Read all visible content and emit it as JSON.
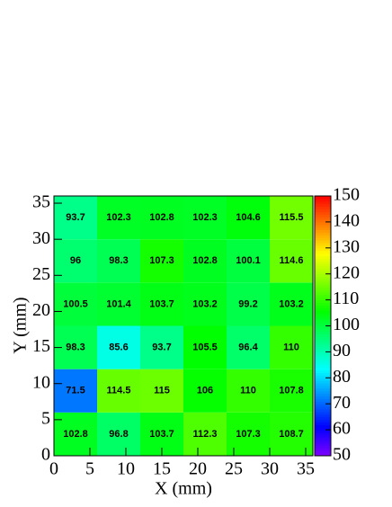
{
  "chart_data": {
    "type": "heatmap",
    "x_label": "X (mm)",
    "y_label": "Y (mm)",
    "xbins": [
      0,
      6,
      12,
      18,
      24,
      30,
      36
    ],
    "ybins": [
      0,
      6,
      12,
      18,
      24,
      30,
      36
    ],
    "values": [
      [
        102.8,
        96.8,
        103.7,
        112.3,
        107.3,
        108.7
      ],
      [
        71.5,
        114.5,
        115,
        106,
        110,
        107.8
      ],
      [
        98.3,
        85.6,
        93.7,
        105.5,
        96.4,
        110
      ],
      [
        100.5,
        101.4,
        103.7,
        103.2,
        99.2,
        103.2
      ],
      [
        96,
        98.3,
        107.3,
        102.8,
        100.1,
        114.6
      ],
      [
        93.7,
        102.3,
        102.8,
        102.3,
        104.6,
        115.5
      ]
    ],
    "xlim": [
      0,
      36
    ],
    "ylim": [
      0,
      36
    ],
    "xticks": [
      0,
      5,
      10,
      15,
      20,
      25,
      30,
      35
    ],
    "yticks": [
      0,
      5,
      10,
      15,
      20,
      25,
      30,
      35
    ],
    "zlim": [
      50,
      150
    ],
    "zticks": [
      50,
      60,
      70,
      80,
      90,
      100,
      110,
      120,
      130,
      140,
      150
    ],
    "palette": "rainbow"
  }
}
